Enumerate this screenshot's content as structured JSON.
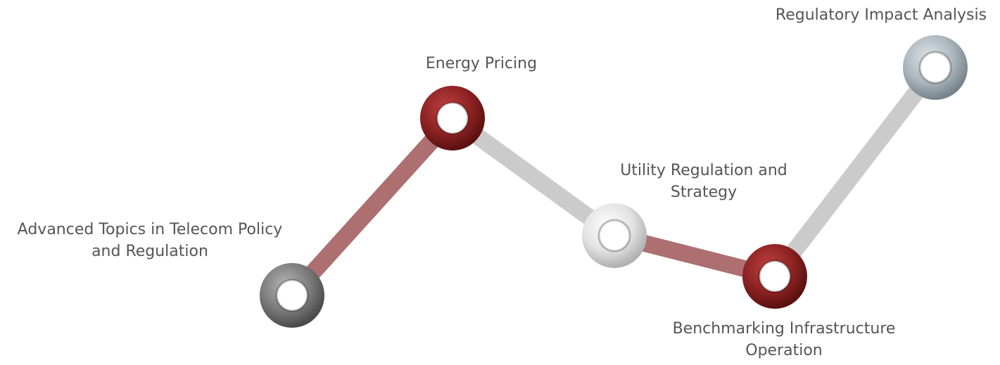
{
  "nodes": [
    {
      "label": [
        "Advanced Topics in Telecom Policy",
        "and Regulation"
      ]
    },
    {
      "label": [
        "Energy Pricing"
      ]
    },
    {
      "label": [
        "Utility Regulation and",
        "Strategy"
      ]
    },
    {
      "label": [
        "Benchmarking Infrastructure",
        "Operation"
      ]
    },
    {
      "label": [
        "Regulatory Impact Analysis"
      ]
    }
  ]
}
